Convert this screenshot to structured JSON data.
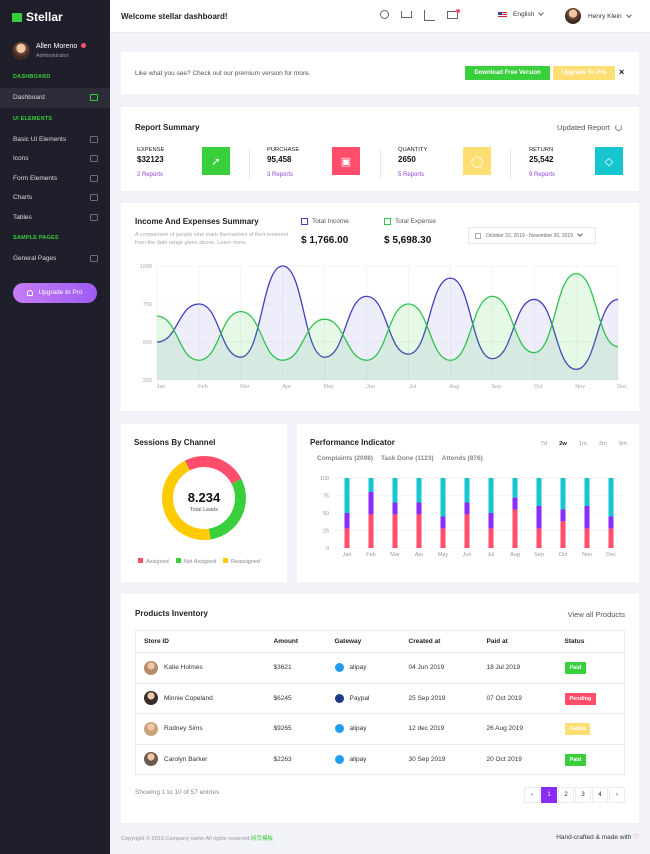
{
  "brand": "Stellar",
  "profile": {
    "name": "Allen Moreno",
    "role": "Administrator"
  },
  "sidebar": {
    "section_dashboard": "DASHBOARD",
    "dashboard": "Dashboard",
    "section_ui": "UI ELEMENTS",
    "ui_items": [
      "Basic UI Elements",
      "Icons",
      "Form Elements",
      "Charts",
      "Tables"
    ],
    "section_pages": "SAMPLE PAGES",
    "page_items": [
      "General Pages"
    ],
    "upgrade": "Upgrade to Pro"
  },
  "header": {
    "title": "Welcome stellar dashboard!",
    "language": "English",
    "user": "Henry Klein"
  },
  "banner": {
    "text": "Like what you see? Check out our premium version for more.",
    "download": "Download Free Version",
    "upgrade": "Upgrade To Pro",
    "close": "×"
  },
  "report": {
    "title": "Report Summary",
    "updated": "Updated Report",
    "stats": [
      {
        "label": "EXPENSE",
        "value": "$32123",
        "link": "2 Reports",
        "color": "#38ce3c",
        "icon": "rocket-icon"
      },
      {
        "label": "PURCHASE",
        "value": "95,458",
        "link": "3 Reports",
        "color": "#ff4d6b",
        "icon": "briefcase-icon"
      },
      {
        "label": "QUANTITY",
        "value": "2650",
        "link": "5 Reports",
        "color": "#ffde73",
        "icon": "lightbulb-icon"
      },
      {
        "label": "RETURN",
        "value": "25,542",
        "link": "9 Reports",
        "color": "#17c6d1",
        "icon": "diamond-icon"
      }
    ]
  },
  "income": {
    "title": "Income And Expenses Summary",
    "desc": "A comparison of people who mark themselves of their ineterest from the date range given above. Learn more.",
    "total_income_label": "Total Income",
    "total_income": "$ 1,766.00",
    "total_expense_label": "Total Expense",
    "total_expense": "$ 5,698.30",
    "date_range": "October 22, 2019 - November 20, 2019"
  },
  "sessions": {
    "title": "Sessions By Channel",
    "value": "8.234",
    "sub": "Total Leads"
  },
  "performance": {
    "title": "Performance Indicator",
    "ranges": [
      "7d",
      "2w",
      "1m",
      "3m",
      "6m"
    ],
    "tabs": [
      "Complaints (2098)",
      "Task Done (1123)",
      "Attends (876)"
    ]
  },
  "inventory": {
    "title": "Products Inventory",
    "view_all": "View all Products",
    "columns": [
      "Store ID",
      "Amount",
      "Gateway",
      "Created at",
      "Paid at",
      "Status"
    ],
    "rows": [
      {
        "name": "Katie Holmes",
        "amount": "$3621",
        "gateway": "alipay",
        "created": "04 Jun 2019",
        "paid": "18 Jul 2019",
        "status": "Paid",
        "status_color": "#38ce3c",
        "gw_color": "#1f9bf0"
      },
      {
        "name": "Minnie Copeland",
        "amount": "$6245",
        "gateway": "Paypal",
        "created": "25 Sep 2019",
        "paid": "07 Oct 2019",
        "status": "Pending",
        "status_color": "#ff4d6b",
        "gw_color": "#1d3b8b"
      },
      {
        "name": "Rodney Sims",
        "amount": "$9265",
        "gateway": "alipay",
        "created": "12 dec 2019",
        "paid": "26 Aug 2019",
        "status": "Failed",
        "status_color": "#ffde73",
        "gw_color": "#1f9bf0"
      },
      {
        "name": "Carolyn Barker",
        "amount": "$2263",
        "gateway": "alipay",
        "created": "30 Sep 2019",
        "paid": "20 Oct 2019",
        "status": "Paid",
        "status_color": "#38ce3c",
        "gw_color": "#1f9bf0"
      }
    ],
    "showing": "Showing 1 to 10 of 57 entries",
    "pages": [
      "1",
      "2",
      "3",
      "4"
    ]
  },
  "footer": {
    "copyright": "Copyright © 2019.Company name All rights reserved.",
    "link": "网页模板",
    "made": "Hand-crafted & made with",
    "heart": "♡"
  },
  "chart_data": [
    {
      "type": "area",
      "title": "Income And Expenses Summary",
      "categories": [
        "Jan",
        "Feb",
        "Mar",
        "Apr",
        "May",
        "Jun",
        "Jul",
        "Aug",
        "Sep",
        "Oct",
        "Nov",
        "Dec"
      ],
      "ylim": [
        250,
        1000
      ],
      "yticks": [
        1000,
        750,
        500,
        250
      ],
      "series": [
        {
          "name": "Total Income",
          "color": "#3f3fbf",
          "values": [
            500,
            750,
            400,
            1000,
            400,
            800,
            420,
            920,
            390,
            780,
            320,
            780
          ]
        },
        {
          "name": "Total Expense",
          "color": "#2fc34c",
          "values": [
            670,
            380,
            700,
            380,
            650,
            380,
            750,
            380,
            800,
            430,
            950,
            470
          ]
        }
      ]
    },
    {
      "type": "pie",
      "title": "Sessions By Channel",
      "categories": [
        "Assigned",
        "Not Assigned",
        "Reassigned"
      ],
      "values": [
        25,
        30,
        45
      ],
      "colors": [
        "#ff4d6b",
        "#38ce3c",
        "#ffca00"
      ]
    },
    {
      "type": "bar",
      "title": "Performance Indicator",
      "categories": [
        "Jan",
        "Feb",
        "Mar",
        "Apr",
        "May",
        "Jun",
        "Jul",
        "Aug",
        "Sep",
        "Oct",
        "Nov",
        "Dec"
      ],
      "ylim": [
        0,
        100
      ],
      "yticks": [
        100,
        75,
        50,
        25,
        0
      ],
      "stacked": true,
      "series": [
        {
          "name": "Complaints",
          "color": "#ff4d6b",
          "values": [
            28,
            48,
            48,
            48,
            28,
            48,
            28,
            55,
            28,
            38,
            28,
            28
          ]
        },
        {
          "name": "Task Done",
          "color": "#8b2cf5",
          "values": [
            22,
            32,
            17,
            17,
            17,
            17,
            22,
            17,
            32,
            17,
            32,
            17
          ]
        },
        {
          "name": "Attends",
          "color": "#17c6d1",
          "values": [
            50,
            20,
            35,
            35,
            55,
            35,
            50,
            28,
            40,
            45,
            40,
            55
          ]
        }
      ]
    }
  ]
}
